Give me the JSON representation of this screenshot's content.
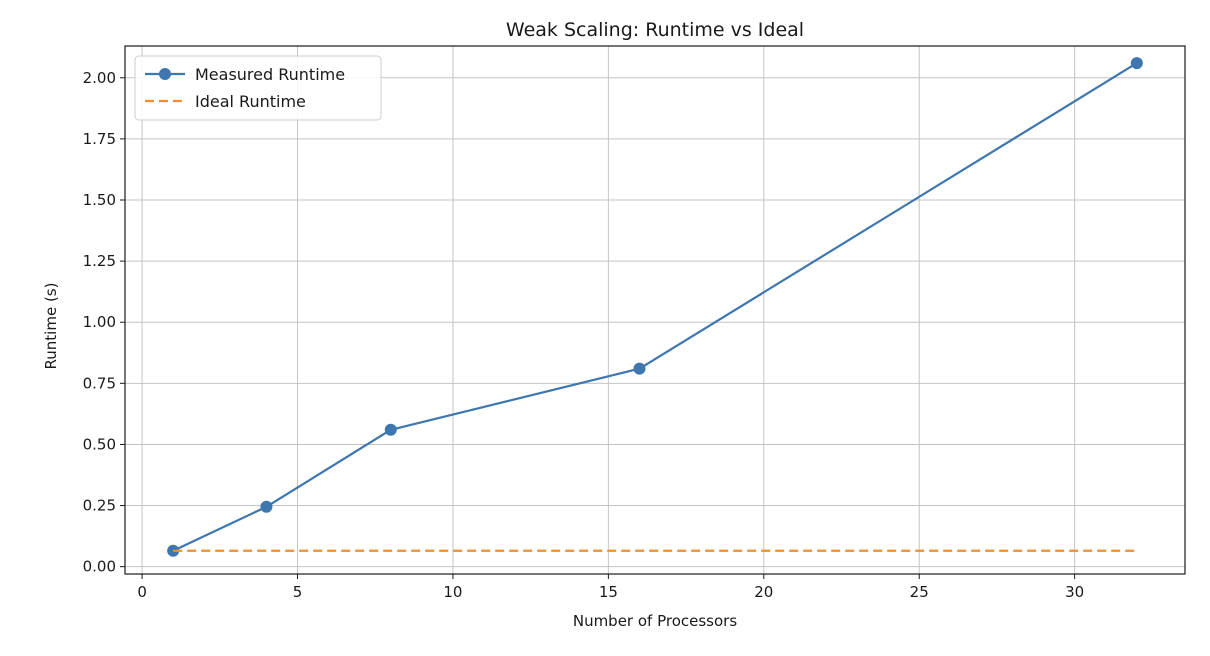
{
  "chart_data": {
    "type": "line",
    "title": "Weak Scaling: Runtime vs Ideal",
    "xlabel": "Number of Processors",
    "ylabel": "Runtime (s)",
    "xlim": [
      -0.55,
      33.55
    ],
    "ylim": [
      -0.03,
      2.13
    ],
    "xticks": [
      0,
      5,
      10,
      15,
      20,
      25,
      30
    ],
    "xtick_labels": [
      "0",
      "5",
      "10",
      "15",
      "20",
      "25",
      "30"
    ],
    "yticks": [
      0.0,
      0.25,
      0.5,
      0.75,
      1.0,
      1.25,
      1.5,
      1.75,
      2.0
    ],
    "ytick_labels": [
      "0.00",
      "0.25",
      "0.50",
      "0.75",
      "1.00",
      "1.25",
      "1.50",
      "1.75",
      "2.00"
    ],
    "grid": true,
    "legend_position": "top-left",
    "series": [
      {
        "name": "Measured Runtime",
        "style": "solid-with-markers",
        "color": "#3e76b0",
        "x": [
          1,
          4,
          8,
          16,
          32
        ],
        "y": [
          0.065,
          0.245,
          0.56,
          0.81,
          2.06
        ]
      },
      {
        "name": "Ideal Runtime",
        "style": "dashed",
        "color": "#f28e2b",
        "x": [
          1,
          32
        ],
        "y": [
          0.065,
          0.065
        ]
      }
    ]
  }
}
